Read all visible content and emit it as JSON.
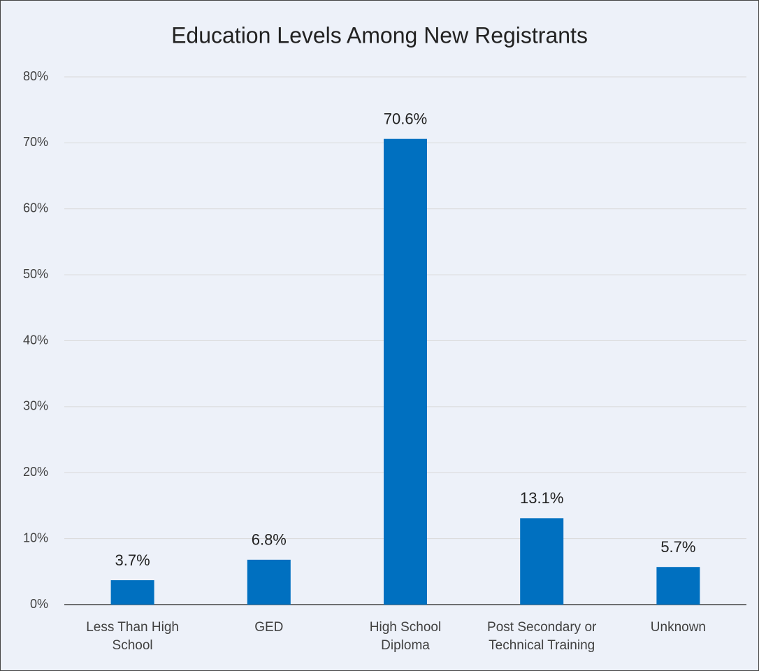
{
  "chart_data": {
    "type": "bar",
    "title": "Education Levels Among New Registrants",
    "categories": [
      "Less Than High School",
      "GED",
      "High School Diploma",
      "Post Secondary or Technical Training",
      "Unknown"
    ],
    "values": [
      3.7,
      6.8,
      70.6,
      13.1,
      5.7
    ],
    "value_labels": [
      "3.7%",
      "6.8%",
      "70.6%",
      "13.1%",
      "5.7%"
    ],
    "color": "#0070c0",
    "ylim": [
      0,
      80
    ],
    "yticks": [
      {
        "value": 0,
        "label": "0%"
      },
      {
        "value": 10,
        "label": "10%"
      },
      {
        "value": 20,
        "label": "20%"
      },
      {
        "value": 30,
        "label": "30%"
      },
      {
        "value": 40,
        "label": "40%"
      },
      {
        "value": 50,
        "label": "50%"
      },
      {
        "value": 60,
        "label": "60%"
      },
      {
        "value": 70,
        "label": "70%"
      },
      {
        "value": 80,
        "label": "80%"
      }
    ],
    "grid": true
  }
}
